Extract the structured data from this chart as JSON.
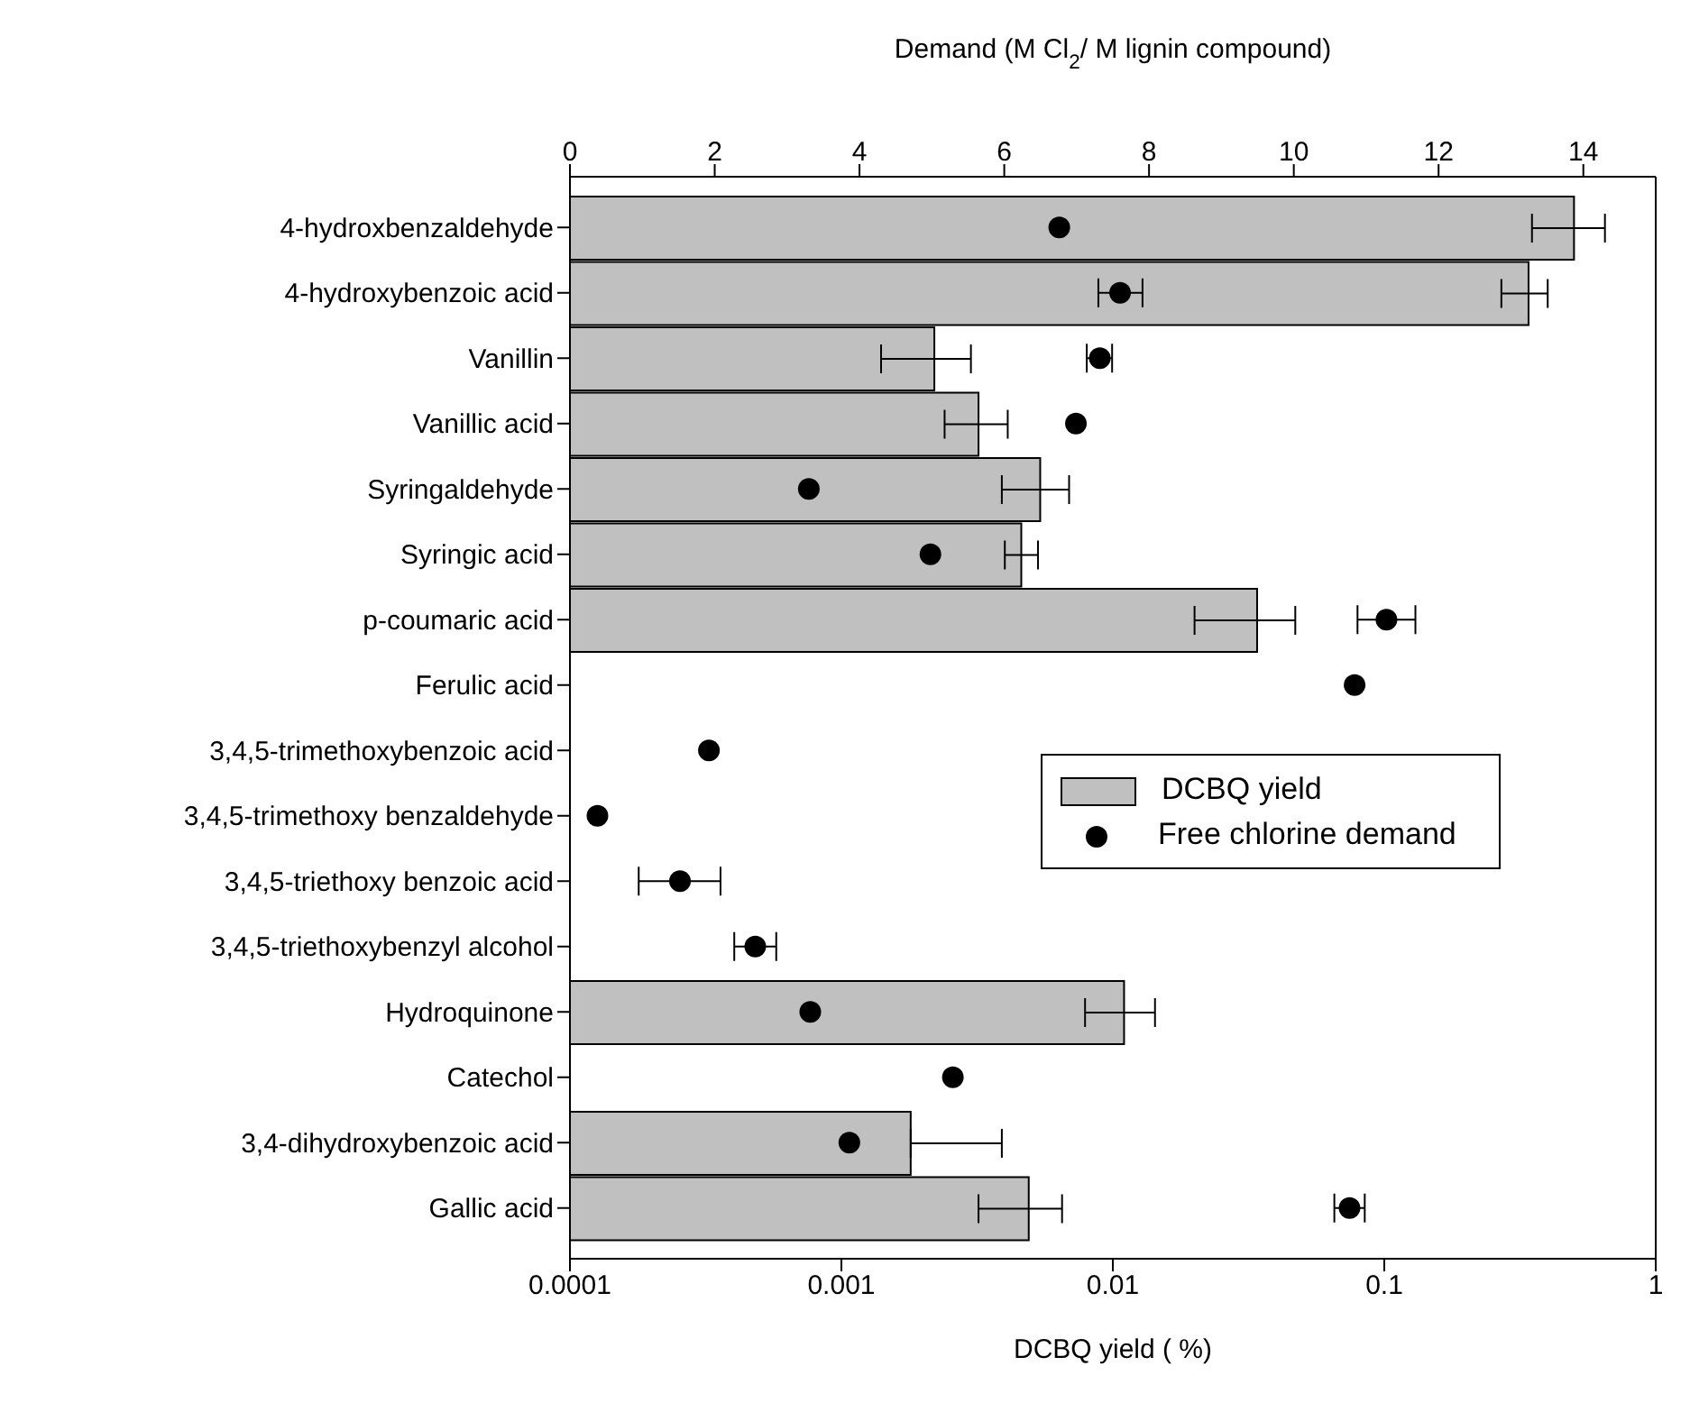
{
  "chart_data": {
    "type": "bar",
    "orientation": "horizontal",
    "categories": [
      "4-hydroxbenzaldehyde",
      "4-hydroxybenzoic acid",
      "Vanillin",
      "Vanillic acid",
      "Syringaldehyde",
      "Syringic acid",
      "p-coumaric acid",
      "Ferulic acid",
      "3,4,5-trimethoxybenzoic acid",
      "3,4,5-trimethoxy benzaldehyde",
      "3,4,5-triethoxy benzoic acid",
      "3,4,5-triethoxybenzyl alcohol",
      "Hydroquinone",
      "Catechol",
      "3,4-dihydroxybenzoic acid",
      "Gallic acid"
    ],
    "series": [
      {
        "name": "DCBQ yield",
        "type": "bar",
        "color": "#c0c0c0",
        "values": [
          0.5,
          0.34,
          0.0022,
          0.0032,
          0.0054,
          0.0046,
          0.034,
          null,
          null,
          null,
          null,
          null,
          0.011,
          null,
          0.0018,
          0.0049
        ],
        "errors": [
          [
            0.35,
            0.65
          ],
          [
            0.27,
            0.4
          ],
          [
            0.0014,
            0.003
          ],
          [
            0.0024,
            0.0041
          ],
          [
            0.0039,
            0.0069
          ],
          [
            0.004,
            0.0053
          ],
          [
            0.02,
            0.047
          ],
          null,
          null,
          null,
          null,
          null,
          [
            0.0079,
            0.0143
          ],
          null,
          [
            0.0018,
            0.0039
          ],
          [
            0.0032,
            0.0065
          ]
        ]
      },
      {
        "name": "Free chlorine demand",
        "type": "scatter",
        "axis": "x2",
        "color": "#000000",
        "values": [
          6.76,
          7.6,
          7.32,
          6.99,
          3.3,
          4.98,
          11.28,
          10.84,
          1.92,
          0.38,
          1.52,
          2.56,
          3.32,
          5.29,
          3.86,
          10.77
        ],
        "errors": [
          null,
          [
            7.3,
            7.91
          ],
          [
            7.14,
            7.49
          ],
          null,
          null,
          null,
          [
            10.88,
            11.68
          ],
          null,
          null,
          null,
          [
            0.95,
            2.08
          ],
          [
            2.27,
            2.85
          ],
          null,
          null,
          null,
          [
            10.56,
            10.98
          ]
        ]
      }
    ],
    "xlabel": "DCBQ yield ( %)",
    "x2label": "Demand (M Cl$_{2}$/ M lignin compound)",
    "log": "x",
    "xlim": [
      0.0001,
      1
    ],
    "xticks": [
      0.0001,
      0.001,
      0.01,
      0.1,
      1
    ],
    "x2lim": [
      0,
      15
    ],
    "x2ticks": [
      0,
      2,
      4,
      6,
      8,
      10,
      12,
      14
    ],
    "marker": "circle",
    "legend": "right",
    "grid": false
  }
}
